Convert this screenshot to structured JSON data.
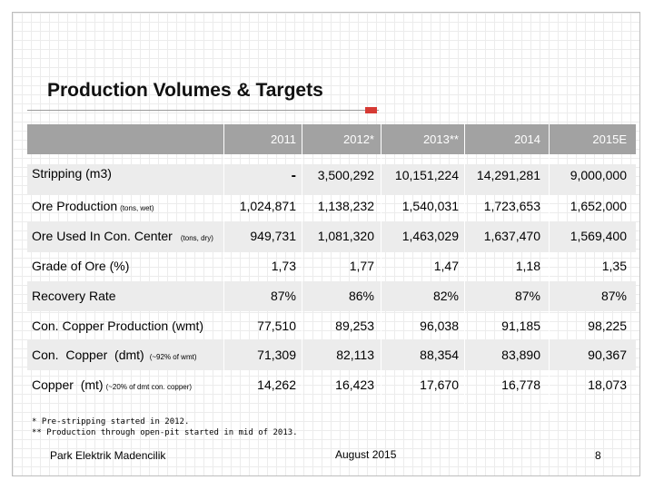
{
  "slide": {
    "title": "Production Volumes & Targets",
    "footer_left": "Park Elektrik Madencilik",
    "footer_center": "August 2015",
    "page_number": "8",
    "accent_color": "#d63a34",
    "header_color": "#a2a2a2"
  },
  "table": {
    "columns": [
      "2011",
      "2012*",
      "2013**",
      "2014",
      "2015E"
    ],
    "rows": [
      {
        "label": "Stripping (m3)",
        "note": "",
        "values": [
          "-",
          "3,500,292",
          "10,151,224",
          "14,291,281",
          "9,000,000"
        ]
      },
      {
        "label": "Ore Production",
        "note": "(tons, wet)",
        "values": [
          "1,024,871",
          "1,138,232",
          "1,540,031",
          "1,723,653",
          "1,652,000"
        ]
      },
      {
        "label": "Ore Used In Con. Center",
        "note": "(tons, dry)",
        "values": [
          "949,731",
          "1,081,320",
          "1,463,029",
          "1,637,470",
          "1,569,400"
        ]
      },
      {
        "label": "Grade of Ore (%)",
        "note": "",
        "values": [
          "1,73",
          "1,77",
          "1,47",
          "1,18",
          "1,35"
        ]
      },
      {
        "label": "Recovery Rate",
        "note": "",
        "values": [
          "87%",
          "86%",
          "82%",
          "87%",
          "87%"
        ]
      },
      {
        "label": "Con. Copper Production (wmt)",
        "note": "",
        "values": [
          "77,510",
          "89,253",
          "96,038",
          "91,185",
          "98,225"
        ]
      },
      {
        "label": "Con.  Copper  (dmt)",
        "note": "(~92% of wmt)",
        "values": [
          "71,309",
          "82,113",
          "88,354",
          "83,890",
          "90,367"
        ]
      },
      {
        "label": "Copper  (mt)",
        "note": "(~20% of dmt con. copper)",
        "values": [
          "14,262",
          "16,423",
          "17,670",
          "16,778",
          "18,073"
        ]
      }
    ]
  },
  "footnotes": [
    "* Pre-stripping started in 2012.",
    "** Production through open-pit started in mid of 2013."
  ]
}
